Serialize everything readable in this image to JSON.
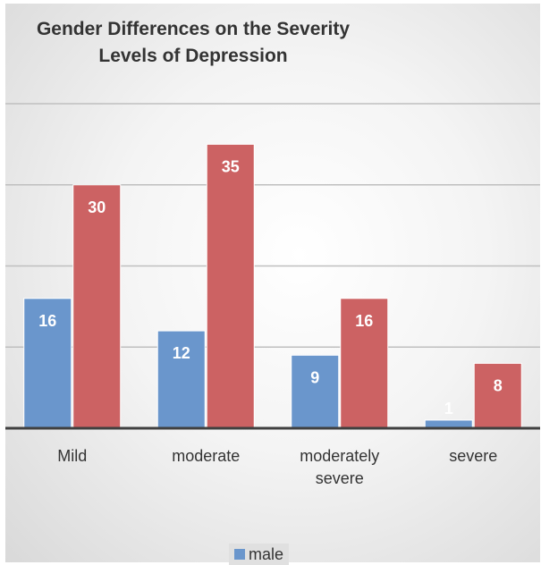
{
  "chart_data": {
    "type": "bar",
    "title_lines": [
      "Gender Differences on the Severity",
      "Levels of Depression"
    ],
    "categories": [
      "Mild",
      "moderate",
      "moderately severe",
      "severe"
    ],
    "series": [
      {
        "name": "male",
        "values": [
          16,
          12,
          9,
          1
        ],
        "color": "#6a96cc"
      },
      {
        "values": [
          30,
          35,
          16,
          8
        ],
        "color": "#cc6263"
      }
    ],
    "ylim": [
      0,
      40
    ],
    "grid": true,
    "legend_position": "bottom"
  }
}
